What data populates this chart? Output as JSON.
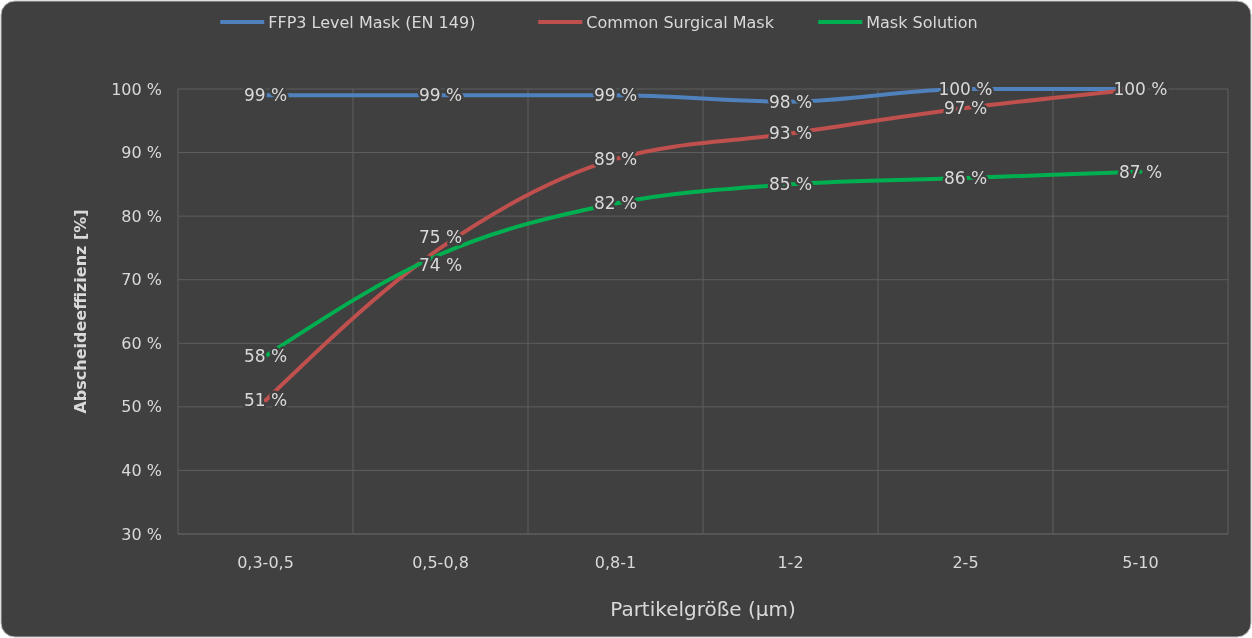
{
  "chart_data": {
    "type": "line",
    "xlabel": "Partikelgröße (µm)",
    "ylabel": "Abscheideeffizienz [%]",
    "categories": [
      "0,3-0,5",
      "0,5-0,8",
      "0,8-1",
      "1-2",
      "2-5",
      "5-10"
    ],
    "series": [
      {
        "name": "FFP3 Level Mask (EN 149)",
        "color": "#4f81bd",
        "values": [
          99,
          99,
          99,
          98,
          100,
          100
        ],
        "value_labels": [
          "99 %",
          "99 %",
          "99 %",
          "98 %",
          "100 %",
          null
        ]
      },
      {
        "name": "Common Surgical Mask",
        "color": "#c0504d",
        "values": [
          51,
          75,
          89,
          93,
          97,
          100
        ],
        "value_labels": [
          "51 %",
          "75 %",
          "89 %",
          "93 %",
          "97 %",
          "100 %"
        ]
      },
      {
        "name": "Mask Solution",
        "color": "#00b050",
        "values": [
          58,
          74,
          82,
          85,
          86,
          87
        ],
        "value_labels": [
          "58 %",
          "74 %",
          "82 %",
          "85 %",
          "86 %",
          "87 %"
        ]
      }
    ],
    "ylim": [
      30,
      100
    ],
    "yticks": [
      {
        "value": 30,
        "label": "30 %"
      },
      {
        "value": 40,
        "label": "40 %"
      },
      {
        "value": 50,
        "label": "50 %"
      },
      {
        "value": 60,
        "label": "60 %"
      },
      {
        "value": 70,
        "label": "70 %"
      },
      {
        "value": 80,
        "label": "80 %"
      },
      {
        "value": 90,
        "label": "90 %"
      },
      {
        "value": 100,
        "label": "100 %"
      }
    ],
    "grid": true,
    "legend": "top",
    "marker": "none",
    "line_style": "solid"
  }
}
